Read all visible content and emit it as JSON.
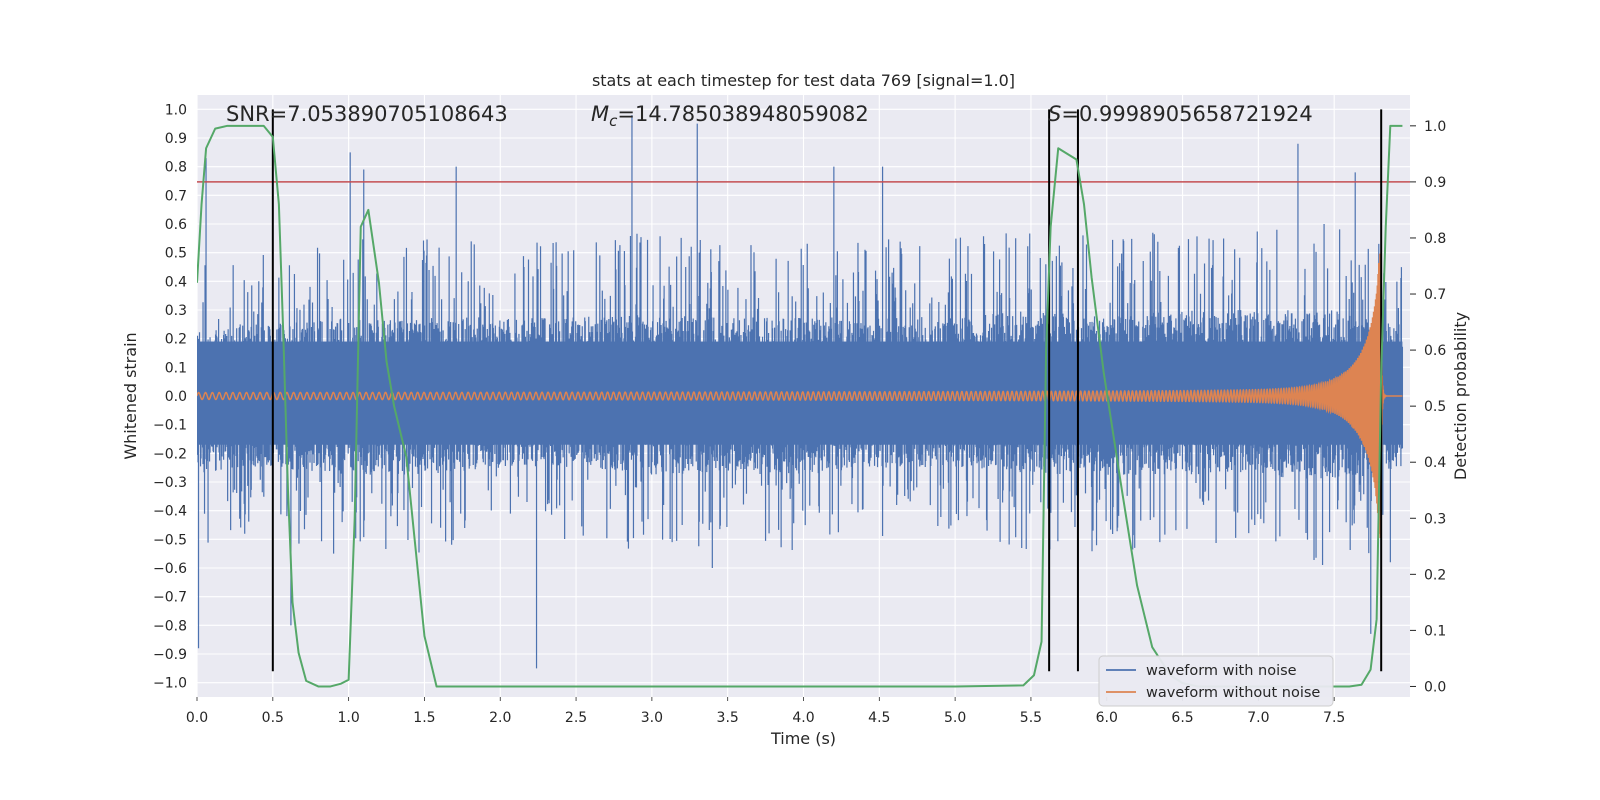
{
  "chart_data": {
    "type": "line",
    "title": "stats at each timestep for test data 769 [signal=1.0]",
    "xlabel": "Time (s)",
    "ylabel": "Whitened strain",
    "y2label": "Detection probability",
    "xlim": [
      0.0,
      8.0
    ],
    "ylim": [
      -1.05,
      1.05
    ],
    "y2lim": [
      -0.0188,
      1.055
    ],
    "x_ticks": [
      0.0,
      0.5,
      1.0,
      1.5,
      2.0,
      2.5,
      3.0,
      3.5,
      4.0,
      4.5,
      5.0,
      5.5,
      6.0,
      6.5,
      7.0,
      7.5
    ],
    "x_tick_labels": [
      "0.0",
      "0.5",
      "1.0",
      "1.5",
      "2.0",
      "2.5",
      "3.0",
      "3.5",
      "4.0",
      "4.5",
      "5.0",
      "5.5",
      "6.0",
      "6.5",
      "7.0",
      "7.5"
    ],
    "y_ticks": [
      1.0,
      0.9,
      0.8,
      0.7,
      0.6,
      0.5,
      0.4,
      0.3,
      0.2,
      0.1,
      0.0,
      -0.1,
      -0.2,
      -0.3,
      -0.4,
      -0.5,
      -0.6,
      -0.7,
      -0.8,
      -0.9,
      -1.0
    ],
    "y_tick_labels": [
      "1.0",
      "0.9",
      "0.8",
      "0.7",
      "0.6",
      "0.5",
      "0.4",
      "0.3",
      "0.2",
      "0.1",
      "0.0",
      "−0.1",
      "−0.2",
      "−0.3",
      "−0.4",
      "−0.5",
      "−0.6",
      "−0.7",
      "−0.8",
      "−0.9",
      "−1.0"
    ],
    "y2_ticks": [
      1.0,
      0.9,
      0.8,
      0.7,
      0.6,
      0.5,
      0.4,
      0.3,
      0.2,
      0.1,
      0.0
    ],
    "y2_tick_labels": [
      "1.0",
      "0.9",
      "0.8",
      "0.7",
      "0.6",
      "0.5",
      "0.4",
      "0.3",
      "0.2",
      "0.1",
      "0.0"
    ],
    "grid": true,
    "legend_location": "lower-right",
    "annotations": {
      "snr": "SNR=7.053890705108643",
      "mc_symbol": "M",
      "mc_sub": "c",
      "mc_value": "=14.785038948059082",
      "s_symbol": "S",
      "s_value": "=0.9998905658721924"
    },
    "threshold_line": {
      "name": "threshold",
      "axis": "y2",
      "value": 0.9,
      "color": "#c44e52"
    },
    "vertical_markers": [
      0.5,
      5.62,
      5.81,
      7.81
    ],
    "series": [
      {
        "name": "waveform with noise",
        "color": "#4c72b0",
        "kind": "noise",
        "envelope_time": [
          0.0,
          0.25,
          0.5,
          1.0,
          1.5,
          2.0,
          2.5,
          3.0,
          3.5,
          4.0,
          4.5,
          5.0,
          5.5,
          6.0,
          6.5,
          7.0,
          7.5,
          7.95
        ],
        "envelope_upper": [
          0.45,
          0.5,
          0.5,
          0.55,
          0.55,
          0.55,
          0.55,
          0.57,
          0.55,
          0.55,
          0.55,
          0.55,
          0.6,
          0.55,
          0.6,
          0.6,
          0.6,
          0.5
        ],
        "envelope_lower": [
          -0.55,
          -0.5,
          -0.5,
          -0.55,
          -0.55,
          -0.5,
          -0.5,
          -0.55,
          -0.55,
          -0.55,
          -0.5,
          -0.5,
          -0.55,
          -0.55,
          -0.55,
          -0.55,
          -0.6,
          -0.5
        ],
        "peaks": [
          [
            0.06,
            0.83
          ],
          [
            0.9,
            -0.55
          ],
          [
            1.01,
            0.85
          ],
          [
            1.1,
            0.79
          ],
          [
            1.71,
            0.8
          ],
          [
            2.24,
            -0.95
          ],
          [
            2.87,
            0.98
          ],
          [
            3.3,
            0.95
          ],
          [
            3.2,
            -0.45
          ],
          [
            3.4,
            -0.6
          ],
          [
            4.2,
            0.8
          ],
          [
            4.52,
            0.8
          ],
          [
            7.26,
            0.88
          ],
          [
            7.74,
            -0.83
          ],
          [
            7.64,
            0.78
          ],
          [
            7.87,
            -0.58
          ],
          [
            0.01,
            -0.88
          ],
          [
            0.62,
            -0.8
          ]
        ]
      },
      {
        "name": "waveform without noise",
        "color": "#dd8452",
        "kind": "chirp",
        "t_merge": 7.81,
        "amp_start": 0.012,
        "amp_peak": 0.5,
        "freq_start_hz": 22
      },
      {
        "name": "detection probability",
        "color": "#55a868",
        "axis": "y2",
        "x": [
          0.0,
          0.03,
          0.06,
          0.12,
          0.2,
          0.3,
          0.44,
          0.5,
          0.54,
          0.57,
          0.6,
          0.63,
          0.67,
          0.72,
          0.8,
          0.88,
          0.95,
          1.0,
          1.04,
          1.08,
          1.13,
          1.2,
          1.25,
          1.3,
          1.38,
          1.44,
          1.5,
          1.58,
          1.7,
          3.0,
          5.0,
          5.45,
          5.52,
          5.57,
          5.6,
          5.63,
          5.68,
          5.8,
          5.85,
          5.9,
          5.98,
          6.1,
          6.2,
          6.3,
          6.42,
          6.5,
          6.6,
          7.0,
          7.6,
          7.68,
          7.74,
          7.78,
          7.81,
          7.84,
          7.87,
          7.9,
          7.95
        ],
        "y": [
          0.72,
          0.86,
          0.96,
          0.995,
          1.0,
          1.0,
          1.0,
          0.98,
          0.86,
          0.62,
          0.35,
          0.15,
          0.06,
          0.01,
          0.0,
          0.0,
          0.005,
          0.012,
          0.3,
          0.82,
          0.85,
          0.72,
          0.58,
          0.5,
          0.41,
          0.25,
          0.09,
          0.0,
          0.0,
          0.0,
          0.0,
          0.002,
          0.02,
          0.08,
          0.6,
          0.82,
          0.96,
          0.94,
          0.86,
          0.73,
          0.56,
          0.35,
          0.18,
          0.07,
          0.02,
          0.006,
          0.0,
          0.0,
          0.0,
          0.003,
          0.03,
          0.12,
          0.56,
          0.82,
          1.0,
          1.0,
          1.0
        ]
      }
    ]
  }
}
